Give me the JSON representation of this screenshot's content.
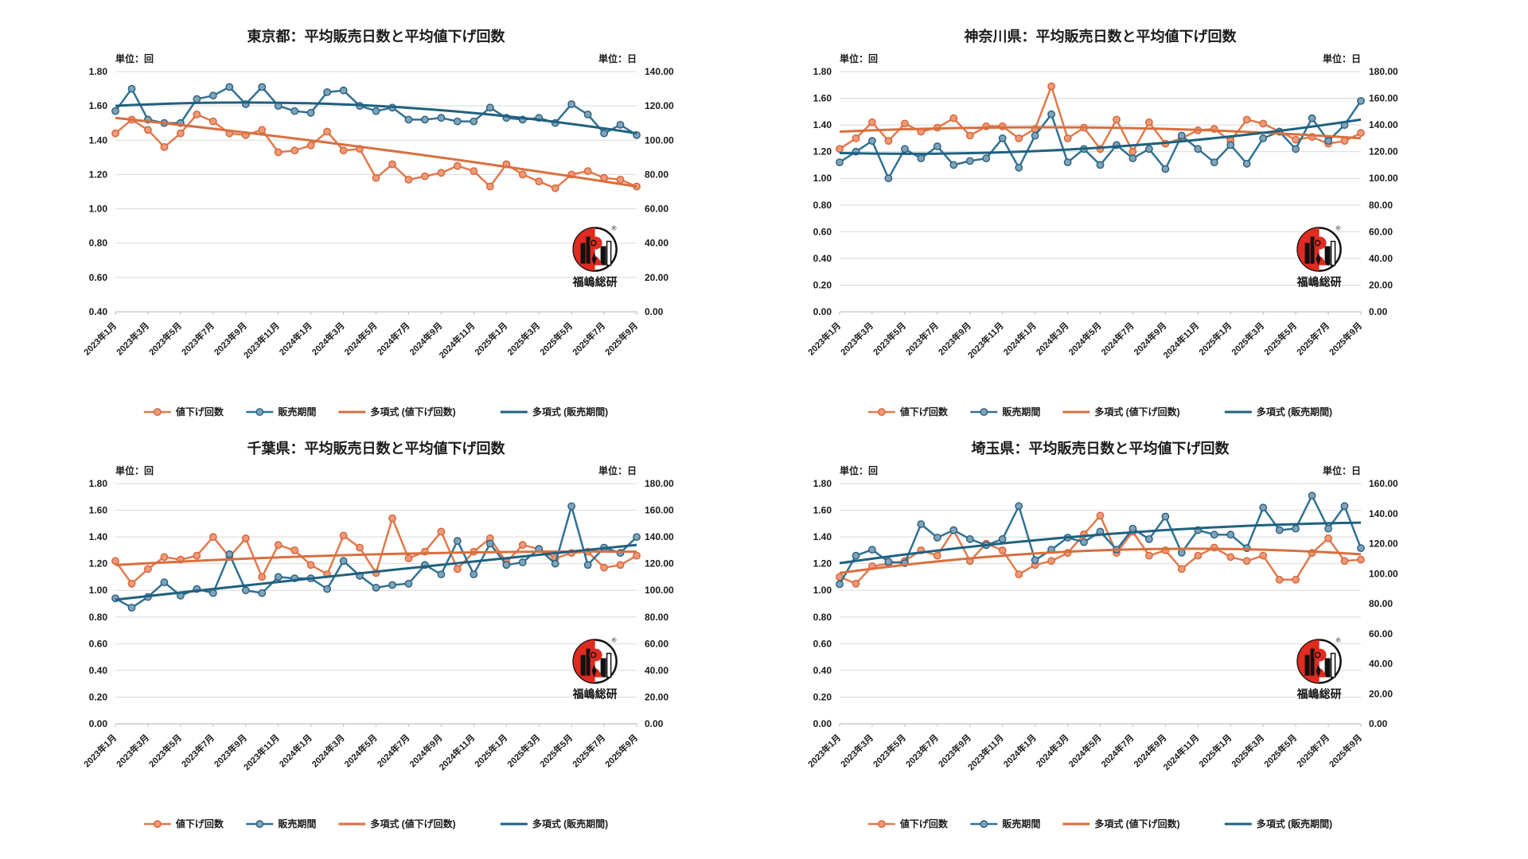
{
  "page": {
    "background": "#FFFFFF"
  },
  "units": {
    "left": "単位：回",
    "right": "単位：日"
  },
  "legend": [
    "値下げ回数",
    "販売期間",
    "多項式 (値下げ回数)",
    "多項式 (販売期間)"
  ],
  "logo": {
    "text": "福嶋総研",
    "red": "#DF2B20",
    "black": "#111111"
  },
  "colors": {
    "orange_line": "#E2794C",
    "orange_marker_fill": "#F09A77",
    "orange_marker_stroke": "#D4653A",
    "orange_trend": "#D96F3E",
    "blue_line": "#2F7294",
    "blue_marker_fill": "#7FA3BC",
    "blue_marker_stroke": "#2B5F7B",
    "blue_trend": "#1F617F",
    "grid": "#D9D9D9",
    "axis": "#BFBFBF",
    "text": "#1A1A1A"
  },
  "x_labels": [
    "2023年1月",
    "2023年3月",
    "2023年5月",
    "2023年7月",
    "2023年9月",
    "2023年11月",
    "2024年1月",
    "2024年3月",
    "2024年5月",
    "2024年7月",
    "2024年9月",
    "2024年11月",
    "2025年1月",
    "2025年3月",
    "2025年5月",
    "2025年7月",
    "2025年9月"
  ],
  "chart_data": [
    {
      "type": "line",
      "title": "東京都：平均販売日数と平均値下げ回数",
      "months": 33,
      "left_axis": {
        "min": 0.4,
        "max": 1.8,
        "step": 0.2
      },
      "right_axis": {
        "min": 0.0,
        "max": 140.0,
        "step": 20.0
      },
      "series": [
        {
          "name": "値下げ回数",
          "axis": "left",
          "kind": "data",
          "values": [
            1.44,
            1.52,
            1.46,
            1.36,
            1.44,
            1.55,
            1.51,
            1.44,
            1.43,
            1.46,
            1.33,
            1.34,
            1.37,
            1.45,
            1.34,
            1.35,
            1.18,
            1.26,
            1.17,
            1.19,
            1.21,
            1.25,
            1.22,
            1.13,
            1.26,
            1.2,
            1.16,
            1.12,
            1.2,
            1.22,
            1.18,
            1.17,
            1.13
          ]
        },
        {
          "name": "販売期間",
          "axis": "right",
          "kind": "data",
          "values": [
            117,
            130,
            112,
            110,
            110,
            124,
            126,
            131,
            121,
            131,
            120,
            117,
            116,
            128,
            129,
            120,
            117,
            119,
            112,
            112,
            113,
            111,
            111,
            119,
            113,
            112,
            113,
            110,
            121,
            115,
            104,
            109,
            103
          ]
        },
        {
          "name": "多項式 (値下げ回数)",
          "axis": "left",
          "kind": "trend",
          "points": [
            1.53,
            1.35,
            1.13
          ]
        },
        {
          "name": "多項式 (販売期間)",
          "axis": "right",
          "kind": "trend",
          "points": [
            120,
            120,
            104
          ]
        }
      ]
    },
    {
      "type": "line",
      "title": "神奈川県：平均販売日数と平均値下げ回数",
      "months": 33,
      "left_axis": {
        "min": 0.0,
        "max": 1.8,
        "step": 0.2
      },
      "right_axis": {
        "min": 0.0,
        "max": 180.0,
        "step": 20.0
      },
      "series": [
        {
          "name": "値下げ回数",
          "axis": "left",
          "kind": "data",
          "values": [
            1.22,
            1.3,
            1.42,
            1.28,
            1.41,
            1.35,
            1.38,
            1.45,
            1.32,
            1.39,
            1.39,
            1.3,
            1.37,
            1.69,
            1.3,
            1.38,
            1.22,
            1.44,
            1.2,
            1.42,
            1.26,
            1.3,
            1.36,
            1.37,
            1.28,
            1.44,
            1.41,
            1.35,
            1.29,
            1.31,
            1.26,
            1.28,
            1.34
          ]
        },
        {
          "name": "販売期間",
          "axis": "right",
          "kind": "data",
          "values": [
            112,
            120,
            128,
            100,
            122,
            115,
            124,
            110,
            113,
            115,
            130,
            108,
            132,
            148,
            112,
            122,
            110,
            125,
            115,
            122,
            107,
            132,
            122,
            112,
            125,
            111,
            130,
            135,
            122,
            145,
            128,
            140,
            158
          ]
        },
        {
          "name": "多項式 (値下げ回数)",
          "axis": "left",
          "kind": "trend",
          "points": [
            1.35,
            1.38,
            1.3
          ]
        },
        {
          "name": "多項式 (販売期間)",
          "axis": "right",
          "kind": "trend",
          "points": [
            119,
            123,
            144
          ]
        }
      ]
    },
    {
      "type": "line",
      "title": "千葉県：平均販売日数と平均値下げ回数",
      "months": 33,
      "left_axis": {
        "min": 0.0,
        "max": 1.8,
        "step": 0.2
      },
      "right_axis": {
        "min": 0.0,
        "max": 180.0,
        "step": 20.0
      },
      "series": [
        {
          "name": "値下げ回数",
          "axis": "left",
          "kind": "data",
          "values": [
            1.22,
            1.05,
            1.16,
            1.25,
            1.23,
            1.26,
            1.4,
            1.25,
            1.39,
            1.1,
            1.34,
            1.3,
            1.19,
            1.12,
            1.41,
            1.32,
            1.13,
            1.54,
            1.24,
            1.29,
            1.44,
            1.16,
            1.29,
            1.39,
            1.21,
            1.34,
            1.31,
            1.24,
            1.28,
            1.29,
            1.17,
            1.19,
            1.26
          ]
        },
        {
          "name": "販売期間",
          "axis": "right",
          "kind": "data",
          "values": [
            94,
            87,
            95,
            106,
            96,
            101,
            98,
            127,
            100,
            98,
            110,
            109,
            109,
            101,
            122,
            111,
            102,
            104,
            105,
            119,
            112,
            137,
            112,
            135,
            119,
            121,
            131,
            120,
            163,
            119,
            132,
            128,
            140
          ]
        },
        {
          "name": "多項式 (値下げ回数)",
          "axis": "left",
          "kind": "trend",
          "points": [
            1.19,
            1.27,
            1.29
          ]
        },
        {
          "name": "多項式 (販売期間)",
          "axis": "right",
          "kind": "trend",
          "points": [
            93,
            114,
            134
          ]
        }
      ]
    },
    {
      "type": "line",
      "title": "埼玉県：平均販売日数と平均値下げ回数",
      "months": 33,
      "left_axis": {
        "min": 0.0,
        "max": 1.8,
        "step": 0.2
      },
      "right_axis": {
        "min": 0.0,
        "max": 160.0,
        "step": 20.0
      },
      "series": [
        {
          "name": "値下げ回数",
          "axis": "left",
          "kind": "data",
          "values": [
            1.1,
            1.05,
            1.18,
            1.2,
            1.22,
            1.3,
            1.26,
            1.45,
            1.22,
            1.35,
            1.3,
            1.12,
            1.19,
            1.22,
            1.28,
            1.42,
            1.56,
            1.28,
            1.44,
            1.26,
            1.3,
            1.16,
            1.26,
            1.32,
            1.25,
            1.22,
            1.26,
            1.08,
            1.08,
            1.28,
            1.39,
            1.22,
            1.23
          ]
        },
        {
          "name": "販売期間",
          "axis": "right",
          "kind": "data",
          "values": [
            93,
            112,
            116,
            108,
            107,
            133,
            124,
            129,
            123,
            119,
            123,
            145,
            109,
            116,
            124,
            121,
            128,
            116,
            130,
            123,
            138,
            114,
            129,
            126,
            126,
            117,
            144,
            129,
            130,
            152,
            130,
            145,
            117
          ]
        },
        {
          "name": "多項式 (値下げ回数)",
          "axis": "left",
          "kind": "trend",
          "points": [
            1.13,
            1.3,
            1.27
          ]
        },
        {
          "name": "多項式 (販売期間)",
          "axis": "right",
          "kind": "trend",
          "points": [
            107,
            126,
            134
          ]
        }
      ]
    }
  ]
}
